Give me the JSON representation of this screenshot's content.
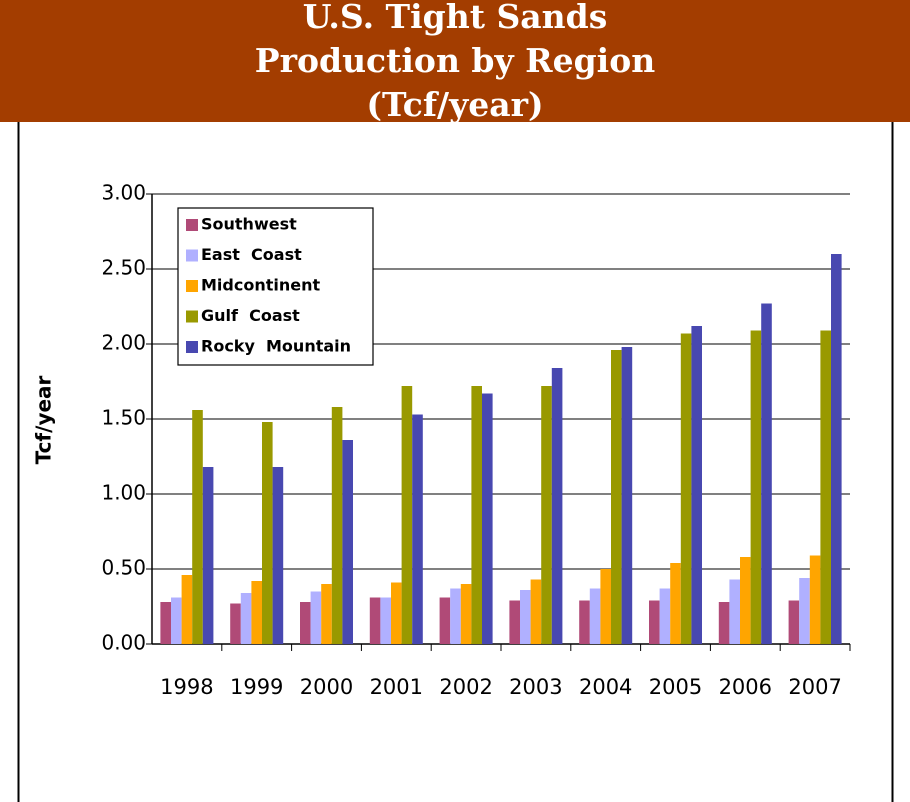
{
  "chart_data": {
    "type": "bar",
    "title": "U.S. Tight Sands Production by Region (Tcf/year)",
    "ylabel": "Tcf/year",
    "categories": [
      "1998",
      "1999",
      "2000",
      "2001",
      "2002",
      "2003",
      "2004",
      "2005",
      "2006",
      "2007"
    ],
    "series": [
      {
        "name": "Southwest",
        "color": "#b04a77",
        "values": [
          0.28,
          0.27,
          0.28,
          0.31,
          0.31,
          0.29,
          0.29,
          0.29,
          0.28,
          0.29
        ]
      },
      {
        "name": "East  Coast",
        "color": "#b0b0ff",
        "values": [
          0.31,
          0.34,
          0.35,
          0.31,
          0.37,
          0.36,
          0.37,
          0.37,
          0.43,
          0.44
        ]
      },
      {
        "name": "Midcontinent",
        "color": "#ffa500",
        "values": [
          0.46,
          0.42,
          0.4,
          0.41,
          0.4,
          0.43,
          0.5,
          0.54,
          0.58,
          0.59
        ]
      },
      {
        "name": "Gulf  Coast",
        "color": "#999900",
        "values": [
          1.56,
          1.48,
          1.58,
          1.72,
          1.72,
          1.72,
          1.96,
          2.07,
          2.09,
          2.09
        ]
      },
      {
        "name": "Rocky  Mountain",
        "color": "#4848b0",
        "values": [
          1.18,
          1.18,
          1.36,
          1.53,
          1.67,
          1.84,
          1.98,
          2.12,
          2.27,
          2.6
        ]
      }
    ],
    "ylim": [
      0,
      3
    ],
    "yticks": [
      {
        "value": 0,
        "label": "0.00"
      },
      {
        "value": 0.5,
        "label": "0.50"
      },
      {
        "value": 1,
        "label": "1.00"
      },
      {
        "value": 1.5,
        "label": "1.50"
      },
      {
        "value": 2,
        "label": "2.00"
      },
      {
        "value": 2.5,
        "label": "2.50"
      },
      {
        "value": 3,
        "label": "3.00"
      }
    ],
    "grid": true,
    "legend": "upper left"
  }
}
